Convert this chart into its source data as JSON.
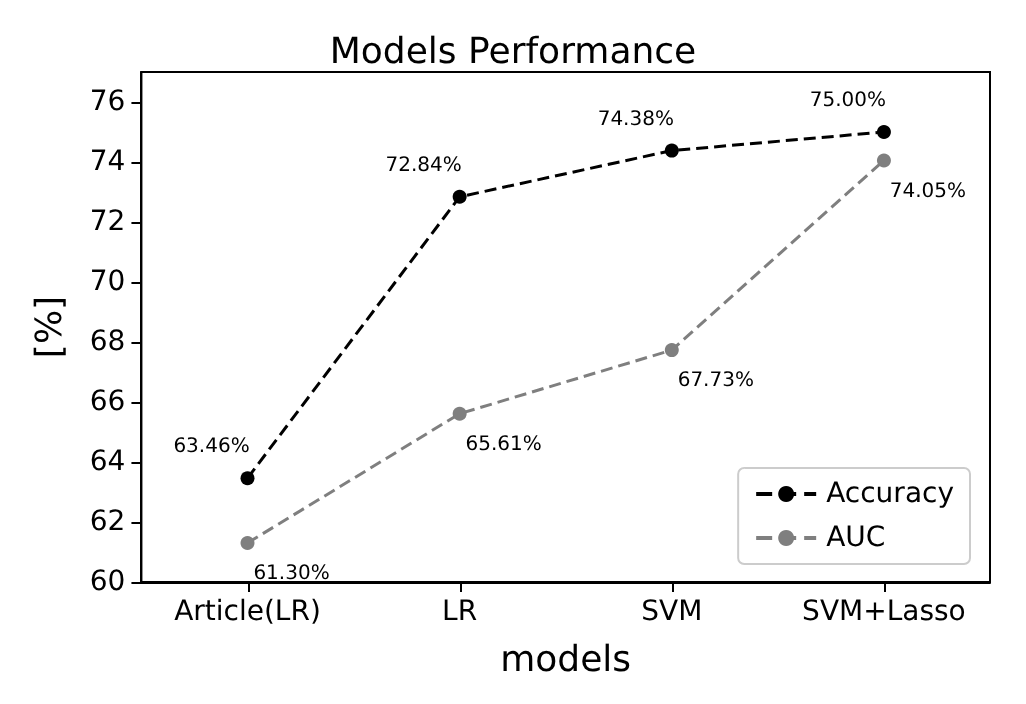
{
  "chart_data": {
    "type": "line",
    "title": "Models Performance",
    "xlabel": "models",
    "ylabel": "[%]",
    "categories": [
      "Article(LR)",
      "LR",
      "SVM",
      "SVM+Lasso"
    ],
    "series": [
      {
        "name": "Accuracy",
        "color": "#000000",
        "values": [
          63.46,
          72.84,
          74.38,
          75.0
        ],
        "value_labels": [
          "63.46%",
          "72.84%",
          "74.38%",
          "75.00%"
        ]
      },
      {
        "name": "AUC",
        "color": "#7f7f7f",
        "values": [
          61.3,
          65.61,
          67.73,
          74.05
        ],
        "value_labels": [
          "61.30%",
          "65.61%",
          "67.73%",
          "74.05%"
        ]
      }
    ],
    "ylim": [
      60,
      77
    ],
    "yticks": [
      60,
      62,
      64,
      66,
      68,
      70,
      72,
      74,
      76
    ],
    "grid": false,
    "legend": "bottom right",
    "marker": "circle",
    "line_style": "dashed"
  }
}
